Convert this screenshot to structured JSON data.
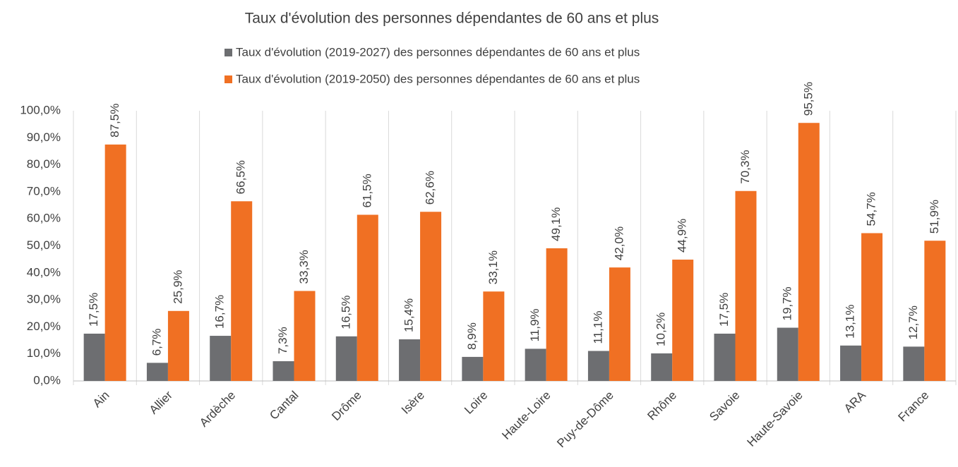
{
  "chart_data": {
    "type": "bar",
    "title": "Taux d'évolution des personnes dépendantes de 60 ans et plus",
    "categories": [
      "Ain",
      "Allier",
      "Ardèche",
      "Cantal",
      "Drôme",
      "Isère",
      "Loire",
      "Haute-Loire",
      "Puy-de-Dôme",
      "Rhône",
      "Savoie",
      "Haute-Savoie",
      "ARA",
      "France"
    ],
    "series": [
      {
        "name": "Taux d'évolution (2019-2027) des personnes dépendantes de 60 ans et plus",
        "color": "#6d6e71",
        "values": [
          17.5,
          6.7,
          16.7,
          7.3,
          16.5,
          15.4,
          8.9,
          11.9,
          11.1,
          10.2,
          17.5,
          19.7,
          13.1,
          12.7
        ],
        "value_labels": [
          "17,5%",
          "6,7%",
          "16,7%",
          "7,3%",
          "16,5%",
          "15,4%",
          "8,9%",
          "11,9%",
          "11,1%",
          "10,2%",
          "17,5%",
          "19,7%",
          "13,1%",
          "12,7%"
        ]
      },
      {
        "name": "Taux d'évolution (2019-2050) des personnes dépendantes de 60 ans et plus",
        "color": "#f07023",
        "values": [
          87.5,
          25.9,
          66.5,
          33.3,
          61.5,
          62.6,
          33.1,
          49.1,
          42.0,
          44.9,
          70.3,
          95.5,
          54.7,
          51.9
        ],
        "value_labels": [
          "87,5%",
          "25,9%",
          "66,5%",
          "33,3%",
          "61,5%",
          "62,6%",
          "33,1%",
          "49,1%",
          "42,0%",
          "44,9%",
          "70,3%",
          "95,5%",
          "54,7%",
          "51,9%"
        ]
      }
    ],
    "ylim": [
      0,
      100
    ],
    "yticks": [
      {
        "value": 0,
        "label": "0,0%"
      },
      {
        "value": 10,
        "label": "10,0%"
      },
      {
        "value": 20,
        "label": "20,0%"
      },
      {
        "value": 30,
        "label": "30,0%"
      },
      {
        "value": 40,
        "label": "40,0%"
      },
      {
        "value": 50,
        "label": "50,0%"
      },
      {
        "value": 60,
        "label": "60,0%"
      },
      {
        "value": 70,
        "label": "70,0%"
      },
      {
        "value": 80,
        "label": "80,0%"
      },
      {
        "value": 90,
        "label": "90,0%"
      },
      {
        "value": 100,
        "label": "100,0%"
      }
    ],
    "grid": false
  }
}
